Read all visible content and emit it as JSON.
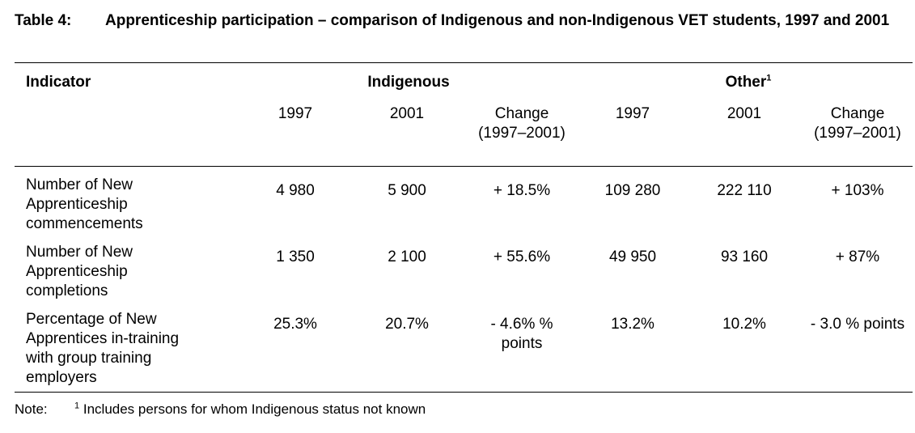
{
  "title": {
    "label": "Table 4:",
    "text": "Apprenticeship participation – comparison of Indigenous and non-Indigenous VET students, 1997 and 2001"
  },
  "header": {
    "indicator": "Indicator",
    "indigenous": "Indigenous",
    "other": "Other",
    "other_sup": "1",
    "years": [
      "1997",
      "2001",
      "Change (1997–2001)",
      "1997",
      "2001",
      "Change (1997–2001)"
    ]
  },
  "rows": [
    {
      "indicator": "Number of New Apprenticeship commencements",
      "values": [
        "4 980",
        "5 900",
        "+ 18.5%",
        "109 280",
        "222 110",
        "+ 103%"
      ]
    },
    {
      "indicator": "Number of New Apprenticeship completions",
      "values": [
        "1 350",
        "2 100",
        "+ 55.6%",
        "49 950",
        "93 160",
        "+ 87%"
      ]
    },
    {
      "indicator": "Percentage of New Apprentices in-training with group training employers",
      "values": [
        "25.3%",
        "20.7%",
        "- 4.6% % points",
        "13.2%",
        "10.2%",
        "- 3.0 % points"
      ]
    }
  ],
  "note": {
    "label": "Note:",
    "sup": "1",
    "text": "Includes persons for whom Indigenous status not known"
  }
}
